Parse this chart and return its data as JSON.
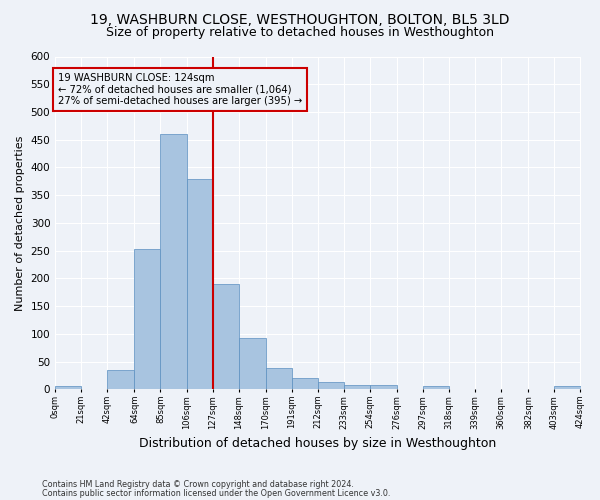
{
  "title": "19, WASHBURN CLOSE, WESTHOUGHTON, BOLTON, BL5 3LD",
  "subtitle": "Size of property relative to detached houses in Westhoughton",
  "xlabel": "Distribution of detached houses by size in Westhoughton",
  "ylabel": "Number of detached properties",
  "footer_line1": "Contains HM Land Registry data © Crown copyright and database right 2024.",
  "footer_line2": "Contains public sector information licensed under the Open Government Licence v3.0.",
  "bin_edges": [
    0,
    21,
    42,
    64,
    85,
    106,
    127,
    148,
    170,
    191,
    212,
    233,
    254,
    276,
    297,
    318,
    339,
    360,
    382,
    403,
    424
  ],
  "bin_labels": [
    "0sqm",
    "21sqm",
    "42sqm",
    "64sqm",
    "85sqm",
    "106sqm",
    "127sqm",
    "148sqm",
    "170sqm",
    "191sqm",
    "212sqm",
    "233sqm",
    "254sqm",
    "276sqm",
    "297sqm",
    "318sqm",
    "339sqm",
    "360sqm",
    "382sqm",
    "403sqm",
    "424sqm"
  ],
  "bar_heights": [
    5,
    0,
    35,
    252,
    460,
    380,
    190,
    92,
    38,
    20,
    13,
    7,
    7,
    0,
    6,
    0,
    0,
    0,
    0,
    5
  ],
  "bar_color": "#a8c4e0",
  "bar_edge_color": "#5a8fc0",
  "vline_x": 127,
  "vline_color": "#cc0000",
  "annotation_text": "19 WASHBURN CLOSE: 124sqm\n← 72% of detached houses are smaller (1,064)\n27% of semi-detached houses are larger (395) →",
  "annotation_box_color": "#cc0000",
  "ylim": [
    0,
    600
  ],
  "yticks": [
    0,
    50,
    100,
    150,
    200,
    250,
    300,
    350,
    400,
    450,
    500,
    550,
    600
  ],
  "background_color": "#eef2f8",
  "grid_color": "#ffffff",
  "title_fontsize": 10,
  "subtitle_fontsize": 9,
  "xlabel_fontsize": 9,
  "ylabel_fontsize": 8
}
